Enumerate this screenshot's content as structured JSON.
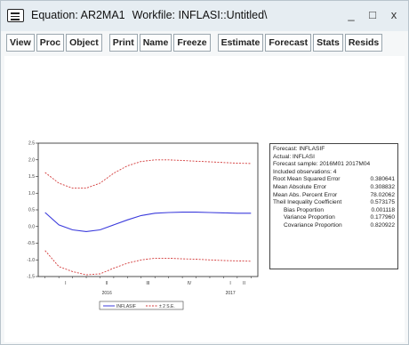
{
  "window": {
    "title": "Equation: AR2MA1",
    "workfile": "Workfile: INFLASI::Untitled\\",
    "controls": [
      "_",
      "□",
      "x"
    ]
  },
  "toolbar": {
    "group1": [
      "View",
      "Proc",
      "Object"
    ],
    "group2": [
      "Print",
      "Name",
      "Freeze"
    ],
    "group3": [
      "Estimate",
      "Forecast",
      "Stats",
      "Resids"
    ]
  },
  "stats": {
    "lines": [
      "Forecast: INFLASIF",
      "Actual: INFLASI",
      "Forecast sample: 2016M01 2017M04",
      "Included observations: 4"
    ],
    "rows": [
      {
        "label": "Root Mean Squared Error",
        "value": "0.380641",
        "indent": false
      },
      {
        "label": "Mean Absolute Error",
        "value": "0.308832",
        "indent": false
      },
      {
        "label": "Mean Abs. Percent Error",
        "value": "78.02062",
        "indent": false
      },
      {
        "label": "Theil Inequality Coefficient",
        "value": "0.573175",
        "indent": false
      },
      {
        "label": "Bias Proportion",
        "value": "0.001118",
        "indent": true
      },
      {
        "label": "Variance Proportion",
        "value": "0.177960",
        "indent": true
      },
      {
        "label": "Covariance Proportion",
        "value": "0.820922",
        "indent": true
      }
    ]
  },
  "chart_data": {
    "type": "line",
    "x": [
      1,
      2,
      3,
      4,
      5,
      6,
      7,
      8,
      9,
      10,
      11,
      12,
      13,
      14,
      15,
      16
    ],
    "x_tick_labels": [
      "I",
      "II",
      "III",
      "IV",
      "I",
      "II"
    ],
    "x_tick_positions": [
      2.5,
      5.5,
      8.5,
      11.5,
      14.5,
      15.5
    ],
    "year_labels": [
      {
        "label": "2016",
        "at": 5.5
      },
      {
        "label": "2017",
        "at": 14.5
      }
    ],
    "ylim": [
      -1.5,
      2.5
    ],
    "y_ticks": [
      -1.5,
      -1.0,
      -0.5,
      0.0,
      0.5,
      1.0,
      1.5,
      2.0,
      2.5
    ],
    "y_tick_labels": [
      "-1.5",
      "-1.0",
      "-0.5",
      "0.0",
      "0.5",
      "1.0",
      "1.5",
      "2.0",
      "2.5"
    ],
    "series": [
      {
        "name": "INFLASIF",
        "color": "#3b3bdc",
        "dash": "none",
        "values": [
          0.42,
          0.05,
          -0.1,
          -0.15,
          -0.1,
          0.05,
          0.2,
          0.33,
          0.4,
          0.42,
          0.43,
          0.43,
          0.42,
          0.41,
          0.4,
          0.4
        ]
      },
      {
        "name": "± 2 S.E.",
        "color": "#d23838",
        "dash": "2,1.5",
        "values": [
          1.62,
          1.3,
          1.15,
          1.15,
          1.3,
          1.6,
          1.82,
          1.95,
          2.0,
          2.0,
          1.98,
          1.96,
          1.94,
          1.92,
          1.9,
          1.89
        ]
      },
      {
        "name": "± 2 S.E. lower",
        "color": "#d23838",
        "dash": "2,1.5",
        "values": [
          -0.72,
          -1.2,
          -1.35,
          -1.45,
          -1.42,
          -1.25,
          -1.1,
          -1.0,
          -0.95,
          -0.95,
          -0.97,
          -0.98,
          -1.0,
          -1.02,
          -1.03,
          -1.04
        ]
      }
    ],
    "legend": [
      {
        "label": "INFLASIF",
        "color": "#3b3bdc",
        "dash": "none"
      },
      {
        "label": "± 2 S.E.",
        "color": "#d23838",
        "dash": "2,1.5"
      }
    ]
  }
}
